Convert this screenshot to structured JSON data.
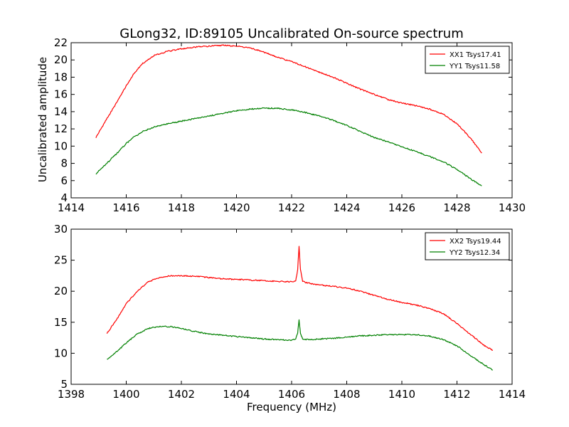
{
  "figure": {
    "title": "GLong32, ID:89105 Uncalibrated On-source spectrum",
    "ylabel": "Uncalibrated amplitude",
    "xlabel": "Frequency (MHz)"
  },
  "chart_data": [
    {
      "type": "line",
      "xlim": [
        1414,
        1430
      ],
      "ylim": [
        4,
        22
      ],
      "xticks": [
        1414,
        1416,
        1418,
        1420,
        1422,
        1424,
        1426,
        1428,
        1430
      ],
      "yticks": [
        4,
        6,
        8,
        10,
        12,
        14,
        16,
        18,
        20,
        22
      ],
      "grid": false,
      "legend_position": "top-right",
      "series": [
        {
          "name": "XX1 Tsys17.41",
          "color": "#ff0000",
          "x": [
            1414.9,
            1415.3,
            1415.7,
            1416.0,
            1416.3,
            1416.6,
            1417.0,
            1417.5,
            1418.0,
            1418.5,
            1419.0,
            1419.5,
            1420.0,
            1420.5,
            1421.0,
            1421.5,
            1422.0,
            1422.5,
            1423.0,
            1423.5,
            1424.0,
            1424.5,
            1425.0,
            1425.5,
            1426.0,
            1426.5,
            1427.0,
            1427.5,
            1428.0,
            1428.5,
            1428.9
          ],
          "y": [
            11.0,
            13.2,
            15.3,
            17.0,
            18.5,
            19.6,
            20.5,
            21.0,
            21.3,
            21.5,
            21.6,
            21.7,
            21.6,
            21.4,
            20.9,
            20.3,
            19.8,
            19.2,
            18.6,
            18.0,
            17.3,
            16.6,
            16.0,
            15.4,
            15.0,
            14.7,
            14.3,
            13.7,
            12.6,
            10.9,
            9.2
          ]
        },
        {
          "name": "YY1 Tsys11.58",
          "color": "#008000",
          "x": [
            1414.9,
            1415.3,
            1415.7,
            1416.0,
            1416.3,
            1416.6,
            1417.0,
            1417.5,
            1418.0,
            1418.5,
            1419.0,
            1419.5,
            1420.0,
            1420.5,
            1421.0,
            1421.5,
            1422.0,
            1422.5,
            1423.0,
            1423.5,
            1424.0,
            1424.5,
            1425.0,
            1425.5,
            1426.0,
            1426.5,
            1427.0,
            1427.5,
            1428.0,
            1428.5,
            1428.9
          ],
          "y": [
            6.8,
            8.0,
            9.3,
            10.3,
            11.1,
            11.7,
            12.2,
            12.6,
            12.9,
            13.2,
            13.5,
            13.8,
            14.1,
            14.3,
            14.4,
            14.4,
            14.2,
            13.9,
            13.5,
            13.0,
            12.4,
            11.7,
            11.0,
            10.5,
            9.9,
            9.4,
            8.8,
            8.2,
            7.3,
            6.2,
            5.4
          ]
        }
      ]
    },
    {
      "type": "line",
      "xlim": [
        1398,
        1414
      ],
      "ylim": [
        5,
        30
      ],
      "xticks": [
        1398,
        1400,
        1402,
        1404,
        1406,
        1408,
        1410,
        1412,
        1414
      ],
      "yticks": [
        5,
        10,
        15,
        20,
        25,
        30
      ],
      "grid": false,
      "legend_position": "top-right",
      "series": [
        {
          "name": "XX2 Tsys19.44",
          "color": "#ff0000",
          "x": [
            1399.3,
            1399.7,
            1400.0,
            1400.4,
            1400.8,
            1401.2,
            1401.6,
            1402.0,
            1402.5,
            1403.0,
            1403.5,
            1404.0,
            1404.5,
            1405.0,
            1405.5,
            1406.0,
            1406.15,
            1406.22,
            1406.27,
            1406.32,
            1406.4,
            1406.6,
            1407.0,
            1407.5,
            1408.0,
            1408.5,
            1409.0,
            1409.5,
            1410.0,
            1410.5,
            1411.0,
            1411.5,
            1412.0,
            1412.5,
            1413.0,
            1413.3
          ],
          "y": [
            13.2,
            15.8,
            18.0,
            20.0,
            21.5,
            22.2,
            22.5,
            22.5,
            22.4,
            22.2,
            22.0,
            21.9,
            21.8,
            21.7,
            21.6,
            21.5,
            21.7,
            23.5,
            27.3,
            23.5,
            21.6,
            21.3,
            21.0,
            20.8,
            20.5,
            20.0,
            19.3,
            18.7,
            18.2,
            17.8,
            17.2,
            16.4,
            14.8,
            13.0,
            11.2,
            10.5
          ]
        },
        {
          "name": "YY2 Tsys12.34",
          "color": "#008000",
          "x": [
            1399.3,
            1399.7,
            1400.0,
            1400.4,
            1400.8,
            1401.2,
            1401.6,
            1402.0,
            1402.5,
            1403.0,
            1403.5,
            1404.0,
            1404.5,
            1405.0,
            1405.5,
            1406.0,
            1406.15,
            1406.22,
            1406.27,
            1406.32,
            1406.4,
            1406.6,
            1407.0,
            1407.5,
            1408.0,
            1408.5,
            1409.0,
            1409.5,
            1410.0,
            1410.5,
            1411.0,
            1411.5,
            1412.0,
            1412.5,
            1413.0,
            1413.3
          ],
          "y": [
            9.0,
            10.4,
            11.7,
            13.1,
            14.0,
            14.3,
            14.3,
            14.0,
            13.5,
            13.1,
            12.9,
            12.7,
            12.5,
            12.3,
            12.2,
            12.1,
            12.3,
            13.3,
            15.4,
            13.3,
            12.3,
            12.2,
            12.3,
            12.4,
            12.6,
            12.8,
            12.9,
            13.0,
            13.0,
            13.0,
            12.8,
            12.2,
            11.2,
            9.6,
            8.1,
            7.3
          ]
        }
      ]
    }
  ]
}
